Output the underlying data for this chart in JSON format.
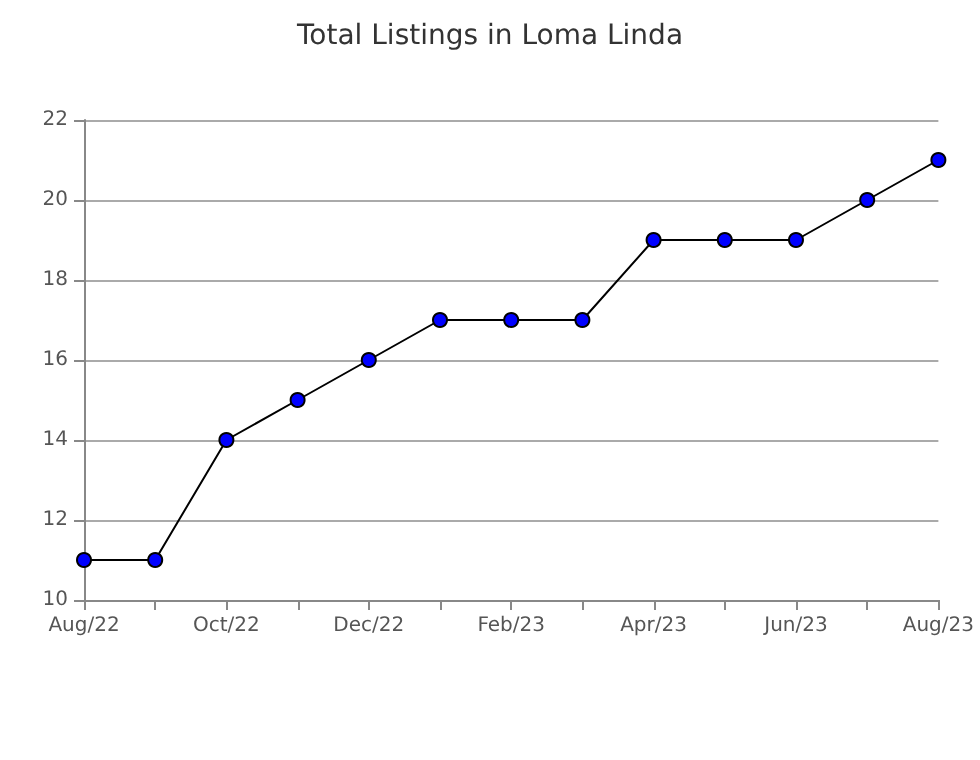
{
  "chart_data": {
    "type": "line",
    "title": "Total Listings in Loma Linda",
    "categories": [
      "Aug/22",
      null,
      "Oct/22",
      null,
      "Dec/22",
      null,
      "Feb/23",
      null,
      "Apr/23",
      null,
      "Jun/23",
      null,
      "Aug/23"
    ],
    "series": [
      {
        "color": "#0000ff",
        "values": [
          11,
          11,
          14,
          15,
          16,
          17,
          17,
          17,
          19,
          19,
          19,
          20,
          21
        ]
      }
    ],
    "ylim": [
      10,
      22
    ],
    "yticks": [
      10,
      12,
      14,
      16,
      18,
      20,
      22
    ],
    "grid": "y",
    "marker": "circle",
    "line_style": "solid"
  }
}
